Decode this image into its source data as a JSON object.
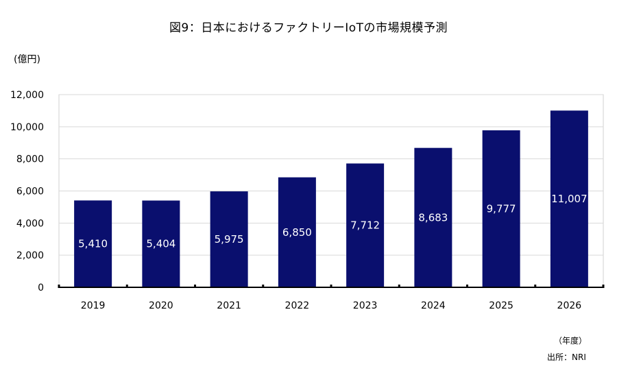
{
  "chart_data": {
    "type": "bar",
    "title": "図9：日本におけるファクトリーIoTの市場規模予測",
    "ylabel": "(億円)",
    "xlabel": "（年度）",
    "source": "出所：NRI",
    "categories": [
      "2019",
      "2020",
      "2021",
      "2022",
      "2023",
      "2024",
      "2025",
      "2026"
    ],
    "values": [
      5410,
      5404,
      5975,
      6850,
      7712,
      8683,
      9777,
      11007
    ],
    "value_labels": [
      "5,410",
      "5,404",
      "5,975",
      "6,850",
      "7,712",
      "8,683",
      "9,777",
      "11,007"
    ],
    "ylim": [
      0,
      12000
    ],
    "yticks": [
      0,
      2000,
      4000,
      6000,
      8000,
      10000,
      12000
    ],
    "ytick_labels": [
      "0",
      "2,000",
      "4,000",
      "6,000",
      "8,000",
      "10,000",
      "12,000"
    ],
    "grid": true,
    "bar_color": "#0a0f6e",
    "grid_color": "#d9d9d9"
  }
}
